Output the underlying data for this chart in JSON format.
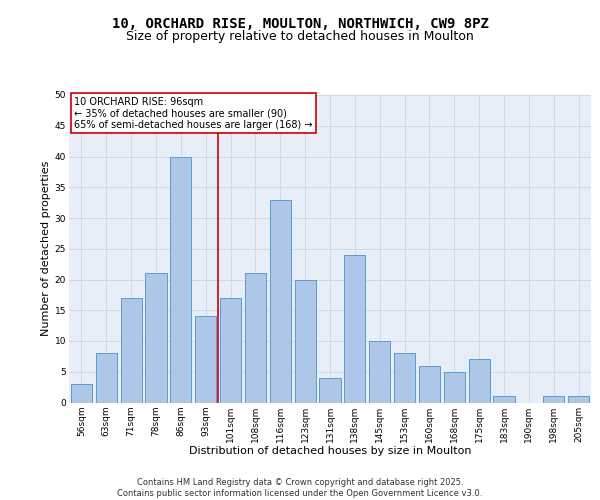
{
  "title_line1": "10, ORCHARD RISE, MOULTON, NORTHWICH, CW9 8PZ",
  "title_line2": "Size of property relative to detached houses in Moulton",
  "xlabel": "Distribution of detached houses by size in Moulton",
  "ylabel": "Number of detached properties",
  "bar_labels": [
    "56sqm",
    "63sqm",
    "71sqm",
    "78sqm",
    "86sqm",
    "93sqm",
    "101sqm",
    "108sqm",
    "116sqm",
    "123sqm",
    "131sqm",
    "138sqm",
    "145sqm",
    "153sqm",
    "160sqm",
    "168sqm",
    "175sqm",
    "183sqm",
    "190sqm",
    "198sqm",
    "205sqm"
  ],
  "bar_values": [
    3,
    8,
    17,
    21,
    40,
    14,
    17,
    21,
    33,
    20,
    4,
    24,
    10,
    8,
    6,
    5,
    7,
    1,
    0,
    1,
    1
  ],
  "bar_color": "#aec6e8",
  "bar_edge_color": "#5a9bd4",
  "vline_x": 5.5,
  "vline_color": "#cc0000",
  "annotation_text": "10 ORCHARD RISE: 96sqm\n← 35% of detached houses are smaller (90)\n65% of semi-detached houses are larger (168) →",
  "annotation_box_color": "#ffffff",
  "annotation_box_edge": "#cc0000",
  "ylim": [
    0,
    50
  ],
  "yticks": [
    0,
    5,
    10,
    15,
    20,
    25,
    30,
    35,
    40,
    45,
    50
  ],
  "grid_color": "#d0d8e8",
  "background_color": "#e8eef8",
  "footer_text": "Contains HM Land Registry data © Crown copyright and database right 2025.\nContains public sector information licensed under the Open Government Licence v3.0.",
  "title_fontsize": 10,
  "subtitle_fontsize": 9,
  "axis_label_fontsize": 8,
  "tick_fontsize": 6.5,
  "annotation_fontsize": 7,
  "footer_fontsize": 6
}
